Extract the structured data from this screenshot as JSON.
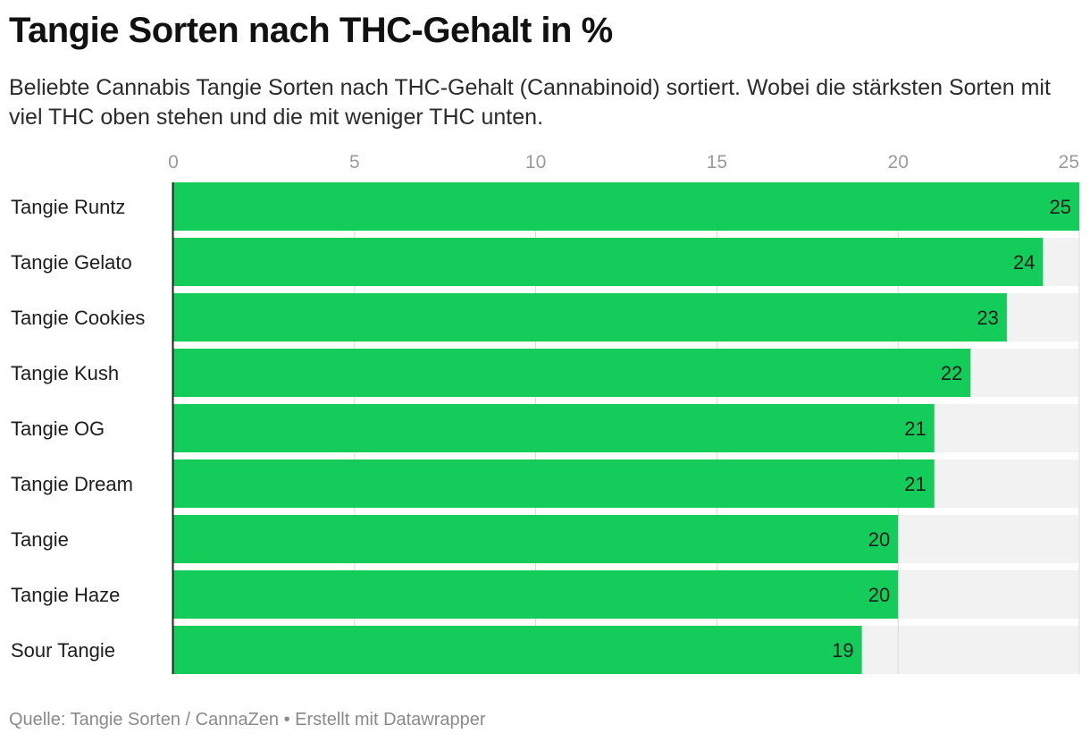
{
  "title": "Tangie Sorten nach THC-Gehalt in %",
  "subtitle": "Beliebte Cannabis Tangie Sorten nach THC-Gehalt (Cannabinoid) sortiert. Wobei die stärksten Sorten mit viel THC oben stehen und die mit weniger THC unten.",
  "footer": "Quelle: Tangie Sorten / CannaZen • Erstellt mit Datawrapper",
  "colors": {
    "bar": "#14cc5a",
    "track": "#f2f2f2",
    "grid": "#d9d9d9",
    "axis": "#222222"
  },
  "chart_data": {
    "type": "bar",
    "orientation": "horizontal",
    "categories": [
      "Tangie Runtz",
      "Tangie Gelato",
      "Tangie Cookies",
      "Tangie Kush",
      "Tangie OG",
      "Tangie Dream",
      "Tangie",
      "Tangie Haze",
      "Sour Tangie"
    ],
    "values": [
      25,
      24,
      23,
      22,
      21,
      21,
      20,
      20,
      19
    ],
    "xlim": [
      0,
      25
    ],
    "xticks": [
      0,
      5,
      10,
      15,
      20,
      25
    ],
    "xtick_position": "top",
    "data_labels": true,
    "grid": true,
    "legend": "none"
  }
}
